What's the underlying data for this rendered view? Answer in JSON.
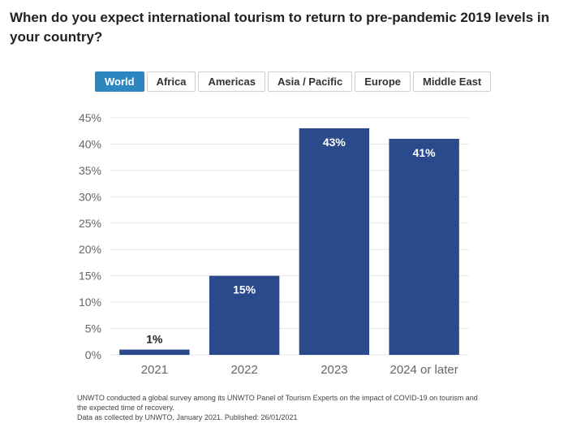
{
  "title": "When do you expect international tourism to return to pre-pandemic 2019 levels in your country?",
  "tabs": [
    {
      "label": "World",
      "active": true
    },
    {
      "label": "Africa",
      "active": false
    },
    {
      "label": "Americas",
      "active": false
    },
    {
      "label": "Asia / Pacific",
      "active": false
    },
    {
      "label": "Europe",
      "active": false
    },
    {
      "label": "Middle East",
      "active": false
    }
  ],
  "colors": {
    "bar": "#2b4a8b",
    "tab_active": "#2e86c1",
    "grid": "#e6e6e6",
    "axis_text": "#666666"
  },
  "chart_data": {
    "type": "bar",
    "categories": [
      "2021",
      "2022",
      "2023",
      "2024 or later"
    ],
    "values": [
      1,
      15,
      43,
      41
    ],
    "data_labels": [
      "1%",
      "15%",
      "43%",
      "41%"
    ],
    "ylim": [
      0,
      45
    ],
    "yticks": [
      0,
      5,
      10,
      15,
      20,
      25,
      30,
      35,
      40,
      45
    ],
    "ytick_labels": [
      "0%",
      "5%",
      "10%",
      "15%",
      "20%",
      "25%",
      "30%",
      "35%",
      "40%",
      "45%"
    ],
    "grid": true,
    "title": "",
    "xlabel": "",
    "ylabel": ""
  },
  "footer": {
    "line1": "UNWTO conducted a global survey among its UNWTO Panel of Tourism Experts on the impact of COVID-19 on tourism and",
    "line2": "the expected time of recovery.",
    "line3": "Data as collected by UNWTO, January 2021. Published: 26/01/2021"
  }
}
